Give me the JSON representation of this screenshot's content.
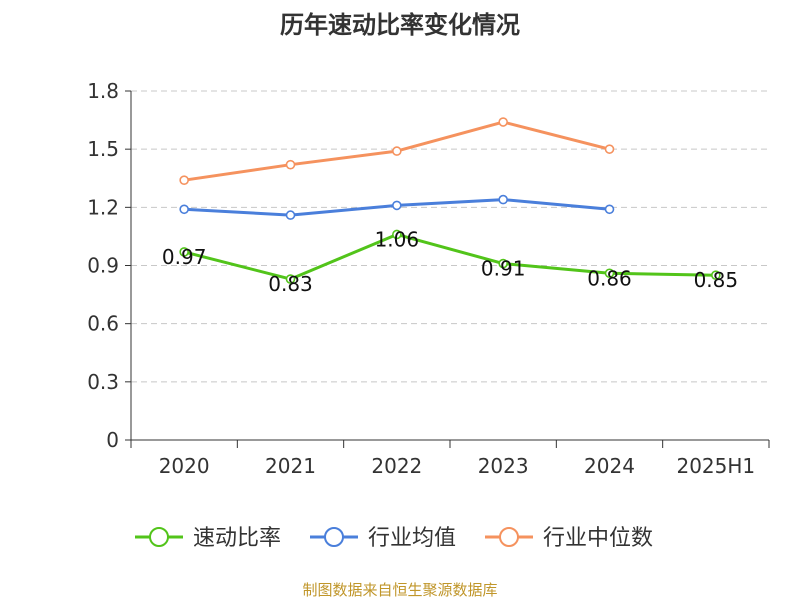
{
  "chart_data": {
    "type": "line",
    "title": "历年速动比率变化情况",
    "categories": [
      "2020",
      "2021",
      "2022",
      "2023",
      "2024",
      "2025H1"
    ],
    "ylim": [
      0,
      1.8
    ],
    "yticks": [
      "0",
      "0.3",
      "0.6",
      "0.9",
      "1.2",
      "1.5",
      "1.8"
    ],
    "grid": true,
    "legend_position": "bottom",
    "series": [
      {
        "name": "速动比率",
        "color": "#52c41a",
        "values": [
          0.97,
          0.83,
          1.06,
          0.91,
          0.86,
          0.85
        ],
        "labels": [
          "0.97",
          "0.83",
          "1.06",
          "0.91",
          "0.86",
          "0.85"
        ]
      },
      {
        "name": "行业均值",
        "color": "#4a7fdb",
        "values": [
          1.19,
          1.16,
          1.21,
          1.24,
          1.19,
          null
        ]
      },
      {
        "name": "行业中位数",
        "color": "#f5925e",
        "values": [
          1.34,
          1.42,
          1.49,
          1.64,
          1.5,
          null
        ]
      }
    ],
    "source": "制图数据来自恒生聚源数据库"
  },
  "colors": {
    "axis": "#333333",
    "grid": "#c8c8c8",
    "source_text": "#c0962a"
  }
}
